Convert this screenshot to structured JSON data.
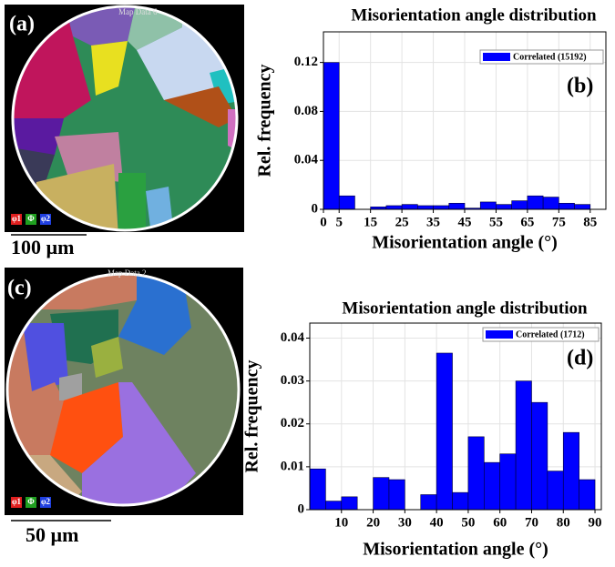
{
  "chart_data": [
    {
      "type": "histogram",
      "title": "Misorientation angle distribution",
      "x_label": "Misorientation angle (°)",
      "y_label": "Rel. frequency",
      "panel_label": "(b)",
      "bins": [
        0,
        5,
        10,
        15,
        20,
        25,
        30,
        35,
        40,
        45,
        50,
        55,
        60,
        65,
        70,
        75,
        80,
        85,
        90
      ],
      "series": [
        {
          "name": "Correlated (15192)",
          "color": "#0000ff",
          "values": [
            0.12,
            0.011,
            0,
            0.002,
            0.003,
            0.004,
            0.003,
            0.003,
            0.005,
            0.001,
            0.006,
            0.004,
            0.007,
            0.011,
            0.01,
            0.005,
            0.004,
            0
          ]
        }
      ],
      "xlim": [
        0,
        90
      ],
      "xticks": [
        0,
        5,
        15,
        25,
        35,
        45,
        55,
        65,
        75,
        85
      ],
      "ylim": [
        0,
        0.145
      ],
      "yticks": [
        0,
        0.04,
        0.08,
        0.12
      ],
      "grid": true
    },
    {
      "type": "histogram",
      "title": "Misorientation angle distribution",
      "x_label": "Misorientation angle (°)",
      "y_label": "Rel. frequency",
      "panel_label": "(d)",
      "bins": [
        0,
        5,
        10,
        15,
        20,
        25,
        30,
        35,
        40,
        45,
        50,
        55,
        60,
        65,
        70,
        75,
        80,
        85,
        90
      ],
      "series": [
        {
          "name": "Correlated (1712)",
          "color": "#0000ff",
          "values": [
            0.0095,
            0.002,
            0.003,
            0,
            0.0075,
            0.007,
            0,
            0.0035,
            0.0365,
            0.004,
            0.017,
            0.011,
            0.013,
            0.03,
            0.025,
            0.009,
            0.018,
            0.007
          ]
        }
      ],
      "xlim": [
        0,
        92
      ],
      "xticks": [
        10,
        20,
        30,
        40,
        50,
        60,
        70,
        80,
        90
      ],
      "ylim": [
        0,
        0.0435
      ],
      "yticks": [
        0,
        0.01,
        0.02,
        0.03,
        0.04
      ],
      "grid": true
    }
  ],
  "maps": [
    {
      "label": "(a)",
      "title": "Map Data 6",
      "scale_bar": "100 µm",
      "legend": [
        "φ1",
        "Φ",
        "φ2"
      ]
    },
    {
      "label": "(c)",
      "title": "Map Data 2",
      "scale_bar": "50 µm",
      "legend": [
        "φ1",
        "Φ",
        "φ2"
      ]
    }
  ]
}
